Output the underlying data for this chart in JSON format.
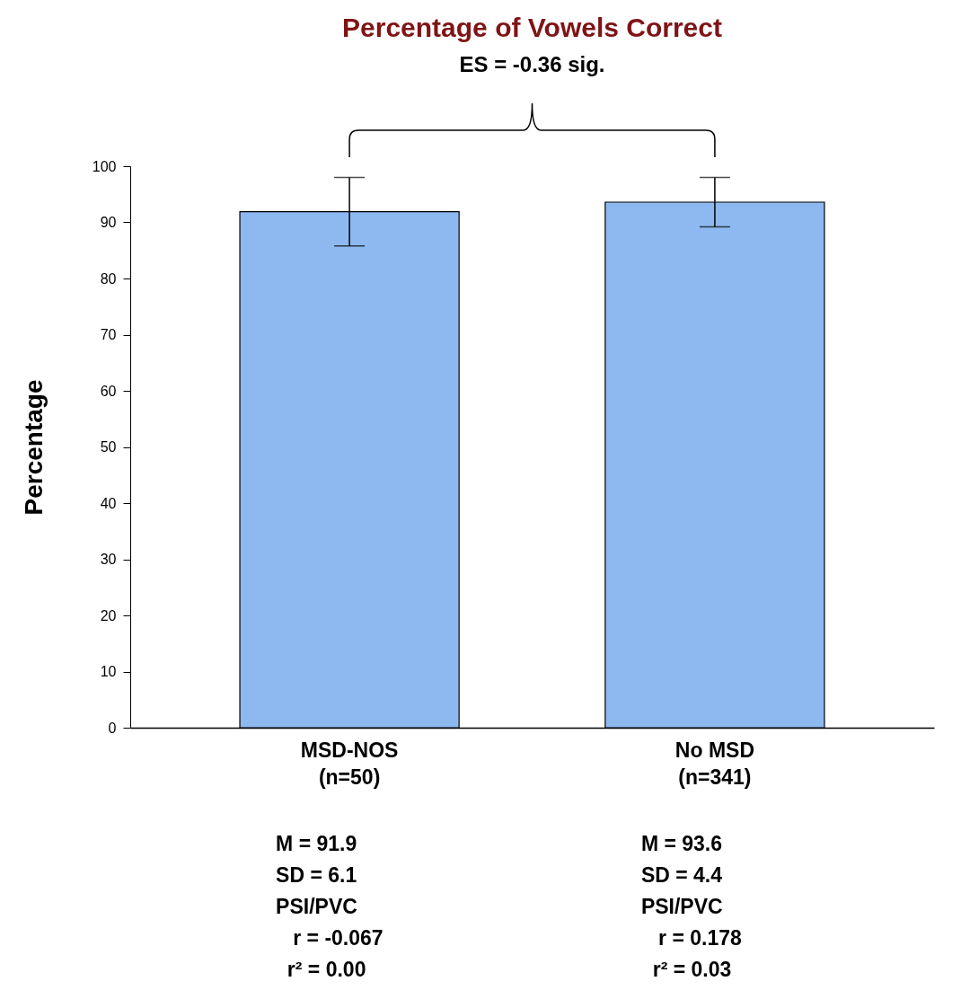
{
  "chart_data": {
    "type": "bar",
    "title": "Percentage of Vowels Correct",
    "ylabel": "Percentage",
    "categories": [
      "MSD-NOS\n(n=50)",
      "No MSD\n(n=341)"
    ],
    "values": [
      91.9,
      93.6
    ],
    "errors": [
      6.1,
      4.4
    ],
    "color": "#8db9f0",
    "ylim": [
      0,
      100
    ],
    "yticks": [
      0,
      10,
      20,
      30,
      40,
      50,
      60,
      70,
      80,
      90,
      100
    ],
    "grid": false,
    "annotations": [
      "ES = -0.36 sig.",
      "M = 91.9\nSD = 6.1\nPSI/PVC\n   r = -0.067\n  r² = 0.00",
      "M = 93.6\nSD = 4.4\nPSI/PVC\n   r = 0.178\n  r² = 0.03"
    ]
  }
}
